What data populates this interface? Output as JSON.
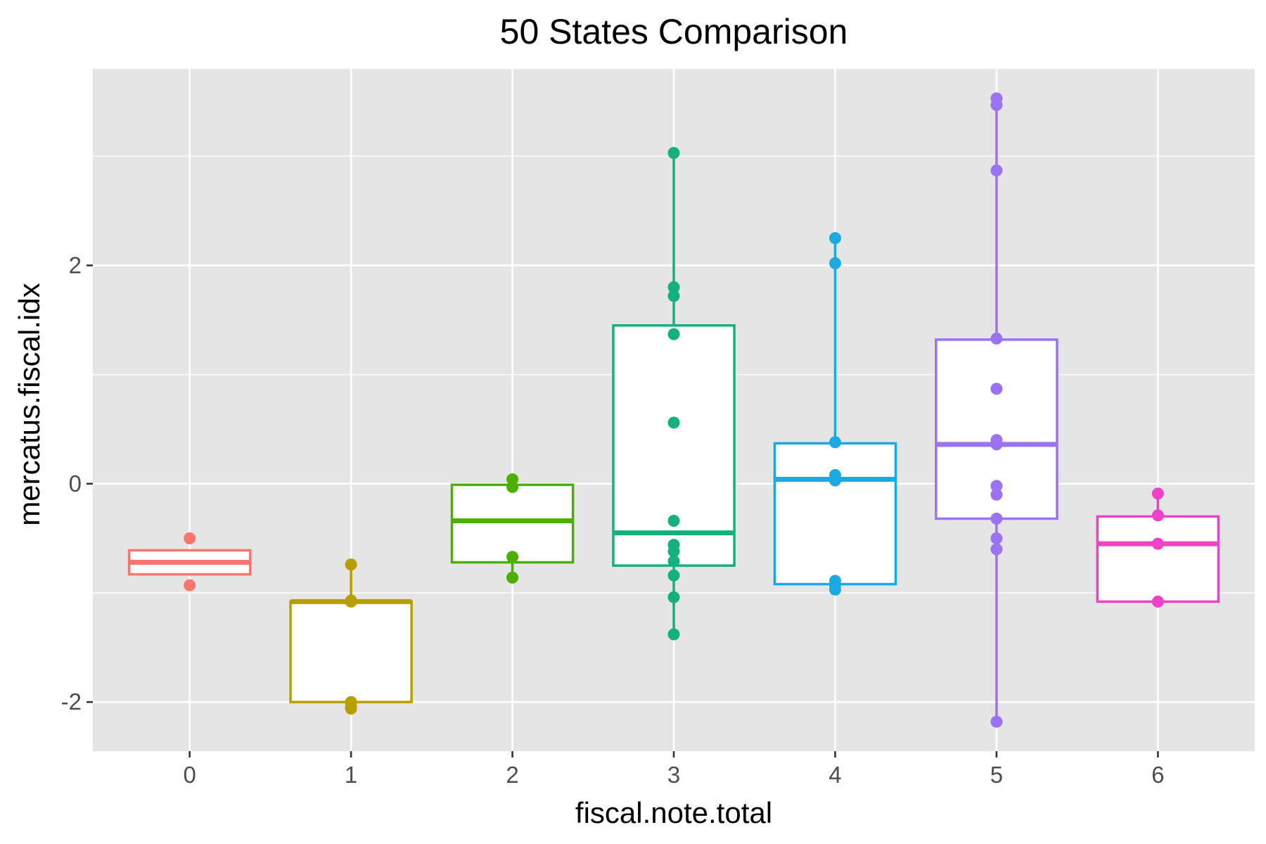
{
  "chart_data": {
    "type": "boxplot",
    "title": "50 States Comparison",
    "xlabel": "fiscal.note.total",
    "ylabel": "mercatus.fiscal.idx",
    "categories": [
      "0",
      "1",
      "2",
      "3",
      "4",
      "5",
      "6"
    ],
    "x_ticks": [
      "0",
      "1",
      "2",
      "3",
      "4",
      "5",
      "6"
    ],
    "y_ticks": [
      {
        "value": -2,
        "label": "-2"
      },
      {
        "value": 0,
        "label": "0"
      },
      {
        "value": 2,
        "label": "2"
      }
    ],
    "ylim": [
      -2.45,
      3.8
    ],
    "grid": true,
    "legend": "none",
    "background": "#e5e5e5",
    "groups": [
      {
        "x": "0",
        "color": "#f8766d",
        "box": {
          "q1": -0.83,
          "median": -0.72,
          "q3": -0.61,
          "lower": -0.83,
          "upper": -0.61
        },
        "points": [
          -0.5,
          -0.93
        ]
      },
      {
        "x": "1",
        "color": "#b79f00",
        "box": {
          "q1": -2.0,
          "median": -1.08,
          "q3": -1.08,
          "lower": -2.0,
          "upper": -0.74
        },
        "points": [
          -0.74,
          -1.08,
          -1.07,
          -2.0,
          -2.04,
          -2.06
        ]
      },
      {
        "x": "2",
        "color": "#4daf00",
        "box": {
          "q1": -0.72,
          "median": -0.34,
          "q3": -0.01,
          "lower": -0.86,
          "upper": 0.04
        },
        "points": [
          0.04,
          -0.03,
          -0.67,
          -0.86
        ]
      },
      {
        "x": "3",
        "color": "#14b07f",
        "box": {
          "q1": -0.75,
          "median": -0.45,
          "q3": 1.45,
          "lower": -1.38,
          "upper": 3.03
        },
        "points": [
          3.03,
          1.8,
          1.72,
          1.37,
          0.56,
          -0.34,
          -0.56,
          -0.62,
          -0.71,
          -0.84,
          -1.04,
          -1.38
        ]
      },
      {
        "x": "4",
        "color": "#1ca9e1",
        "box": {
          "q1": -0.92,
          "median": 0.04,
          "q3": 0.37,
          "lower": -0.97,
          "upper": 2.25
        },
        "points": [
          2.25,
          2.02,
          0.38,
          0.08,
          0.03,
          -0.89,
          -0.93,
          -0.97
        ]
      },
      {
        "x": "5",
        "color": "#9b72f4",
        "box": {
          "q1": -0.32,
          "median": 0.36,
          "q3": 1.32,
          "lower": -2.18,
          "upper": 3.53
        },
        "points": [
          3.53,
          3.47,
          2.87,
          1.33,
          0.87,
          0.4,
          0.36,
          -0.02,
          -0.1,
          -0.32,
          -0.5,
          -0.6,
          -2.18
        ]
      },
      {
        "x": "6",
        "color": "#ef40c8",
        "box": {
          "q1": -1.08,
          "median": -0.55,
          "q3": -0.3,
          "lower": -1.08,
          "upper": -0.09
        },
        "points": [
          -0.09,
          -0.29,
          -0.55,
          -1.08
        ]
      }
    ]
  }
}
